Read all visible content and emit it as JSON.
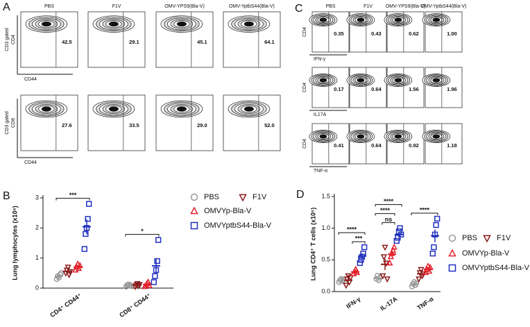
{
  "panel_labels": [
    "A",
    "B",
    "C",
    "D"
  ],
  "flow_A": {
    "columns": [
      "PBS",
      "F1V",
      "OMV-YPS9(Bla-V)",
      "OMV-YptbS44(Bla-V)"
    ],
    "rows": [
      {
        "y_label": [
          "CD3 gated",
          "CD4"
        ],
        "x_label": "CD44",
        "values": [
          "42.5",
          "29.1",
          "45.1",
          "64.1"
        ]
      },
      {
        "y_label": [
          "CD3 gated",
          "CD8"
        ],
        "x_label": "CD44",
        "values": [
          "27.6",
          "33.5",
          "29.0",
          "52.0"
        ]
      }
    ]
  },
  "flow_C": {
    "columns": [
      "PBS",
      "F1V",
      "OMV-YPS9(Bla-V)",
      "OMV-YptbS44(Bla-V)"
    ],
    "rows": [
      {
        "y_label": "CD4",
        "x_label": "IFN-γ",
        "values": [
          "0.35",
          "0.43",
          "0.62",
          "1.00"
        ]
      },
      {
        "y_label": "CD4",
        "x_label": "IL17A",
        "values": [
          "0.17",
          "0.64",
          "1.56",
          "1.96"
        ]
      },
      {
        "y_label": "CD4",
        "x_label": "TNF-α",
        "values": [
          "0.41",
          "0.64",
          "0.92",
          "1.18"
        ]
      }
    ]
  },
  "chart_data": [
    {
      "type": "dot",
      "y_label": "Lung lymphocytes (x10⁶)",
      "categories": [
        "CD4⁺ CD44⁺",
        "CD8⁺ CD44⁺"
      ],
      "ylim": [
        0,
        3
      ],
      "yticks": [
        0,
        1,
        2,
        3
      ],
      "series": [
        {
          "name": "PBS",
          "color": "#9a9a9a",
          "marker": "circle",
          "values": [
            [
              0.3,
              0.4,
              0.35,
              0.45,
              0.5
            ],
            [
              0.05,
              0.1,
              0.12,
              0.08,
              0.1
            ]
          ],
          "means": [
            0.4,
            0.09
          ],
          "errors": [
            0.05,
            0.02
          ]
        },
        {
          "name": "F1V",
          "color": "#8b1a1a",
          "marker": "triangle-down",
          "values": [
            [
              0.5,
              0.6,
              0.7,
              0.45,
              0.55
            ],
            [
              0.05,
              0.1,
              0.15,
              0.08,
              0.12
            ]
          ],
          "means": [
            0.56,
            0.1
          ],
          "errors": [
            0.05,
            0.02
          ]
        },
        {
          "name": "OMVYp-Bla-V",
          "color": "#e3202a",
          "marker": "triangle-up",
          "values": [
            [
              0.6,
              0.7,
              0.8,
              0.65,
              0.75
            ],
            [
              0.05,
              0.1,
              0.15,
              0.2,
              0.08
            ]
          ],
          "means": [
            0.7,
            0.12
          ],
          "errors": [
            0.04,
            0.03
          ]
        },
        {
          "name": "OMVYptbS44-Bla-V",
          "color": "#1f2fbf",
          "marker": "square",
          "values": [
            [
              1.3,
              1.8,
              2.0,
              2.3,
              2.8
            ],
            [
              0.2,
              0.4,
              0.6,
              0.9,
              1.6
            ]
          ],
          "means": [
            2.04,
            0.74
          ],
          "errors": [
            0.25,
            0.25
          ]
        }
      ],
      "annotations": [
        {
          "text": "***",
          "category": 0,
          "from": 0,
          "to": 3
        },
        {
          "text": "*",
          "category": 1,
          "from": 0,
          "to": 3
        }
      ]
    },
    {
      "type": "dot",
      "y_label": "Lung CD4⁺ T cells (x10⁵)",
      "categories": [
        "IFN-γ",
        "IL-17A",
        "TNF-α"
      ],
      "ylim": [
        0,
        1.5
      ],
      "yticks": [
        {
          "value": 0,
          "label": "0.0"
        },
        0.5,
        {
          "value": 1,
          "label": "1.0"
        },
        1.5
      ],
      "series": [
        {
          "name": "PBS",
          "color": "#9a9a9a",
          "marker": "circle",
          "values": [
            [
              0.15,
              0.18,
              0.2,
              0.17,
              0.19
            ],
            [
              0.2,
              0.25,
              0.18,
              0.22
            ],
            [
              0.08,
              0.12,
              0.15,
              0.1,
              0.13
            ]
          ],
          "means": [
            0.18,
            0.21,
            0.12
          ],
          "errors": [
            0.01,
            0.02,
            0.01
          ]
        },
        {
          "name": "F1V",
          "color": "#8b1a1a",
          "marker": "triangle-down",
          "values": [
            [
              0.1,
              0.2,
              0.25,
              0.15,
              0.22
            ],
            [
              0.25,
              0.55,
              0.7,
              0.45,
              0.2
            ],
            [
              0.2,
              0.3,
              0.35,
              0.25,
              0.28
            ]
          ],
          "means": [
            0.18,
            0.43,
            0.28
          ],
          "errors": [
            0.03,
            0.09,
            0.03
          ]
        },
        {
          "name": "OMVYp-Bla-V",
          "color": "#e3202a",
          "marker": "triangle-up",
          "values": [
            [
              0.28,
              0.32,
              0.35,
              0.3
            ],
            [
              0.45,
              0.55,
              0.6,
              0.65,
              0.7
            ],
            [
              0.3,
              0.35,
              0.4,
              0.32,
              0.38
            ]
          ],
          "means": [
            0.31,
            0.59,
            0.35
          ],
          "errors": [
            0.02,
            0.04,
            0.02
          ]
        },
        {
          "name": "OMVYptbS44-Bla-V",
          "color": "#1f2fbf",
          "marker": "square",
          "values": [
            [
              0.45,
              0.5,
              0.55,
              0.6,
              0.7
            ],
            [
              0.8,
              0.85,
              0.95,
              1.0,
              0.9
            ],
            [
              0.6,
              0.7,
              0.9,
              1.05,
              1.15
            ]
          ],
          "means": [
            0.56,
            0.9,
            0.88
          ],
          "errors": [
            0.04,
            0.04,
            0.1
          ]
        }
      ],
      "annotations": [
        {
          "text": "***",
          "category": 0,
          "from": 2,
          "to": 3
        },
        {
          "text": "****",
          "category": 0,
          "from": 0,
          "to": 3
        },
        {
          "text": "ns",
          "category": 1,
          "from": 1,
          "to": 2
        },
        {
          "text": "****",
          "category": 1,
          "from": 0,
          "to": 2
        },
        {
          "text": "****",
          "category": 1,
          "from": 0,
          "to": 3
        },
        {
          "text": "****",
          "category": 2,
          "from": 0,
          "to": 3
        }
      ]
    }
  ]
}
